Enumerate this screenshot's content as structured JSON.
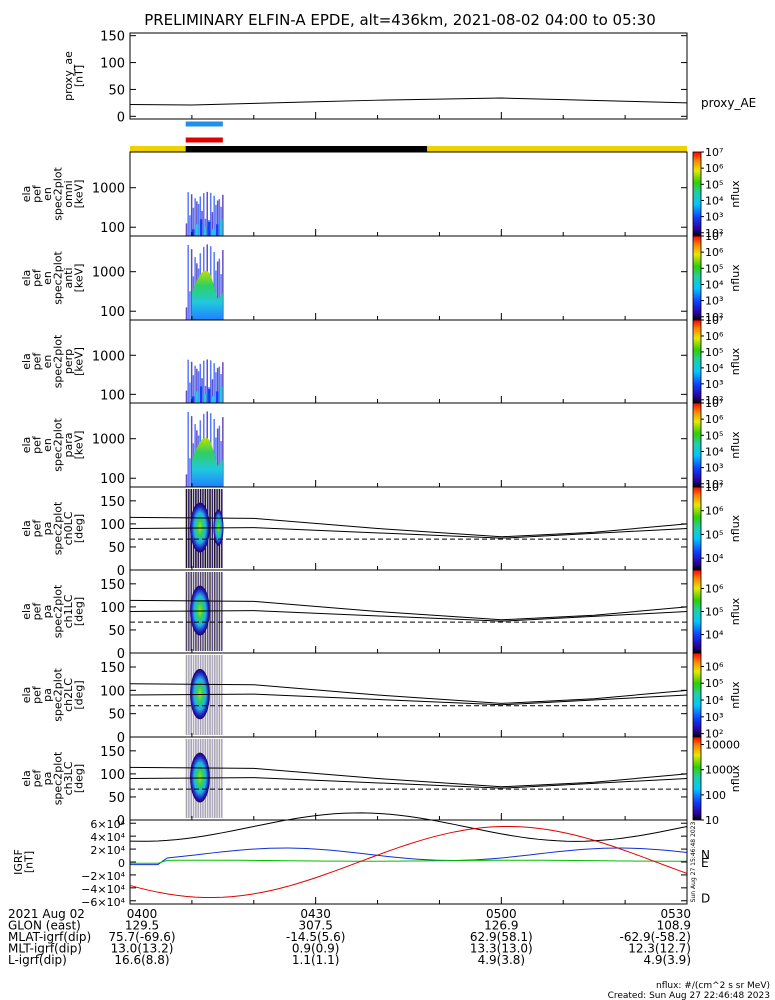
{
  "title": "PRELIMINARY ELFIN-A EPDE, alt=436km, 2021-08-02 04:00 to 05:30",
  "chart_data": [
    {
      "type": "line",
      "name": "proxy_ae",
      "ylabel_lines": [
        "proxy_ae",
        "[nT]"
      ],
      "ylim": [
        -5,
        155
      ],
      "yticks": [
        "0",
        "50",
        "100",
        "150"
      ],
      "ytick_values": [
        0,
        50,
        100,
        150
      ],
      "xlim_min": [
        0,
        90
      ],
      "series": [
        {
          "name": "proxy_AE",
          "x_min": [
            0,
            10,
            20,
            30,
            40,
            50,
            60,
            70,
            80,
            90
          ],
          "y": [
            22,
            21,
            24,
            27,
            30,
            32,
            34,
            31,
            28,
            25
          ]
        }
      ],
      "bars": [
        {
          "label_color": "#1f8fe8",
          "from_min": 9,
          "to_min": 15
        },
        {
          "label_color": "#e00000",
          "from_min": 9,
          "to_min": 15
        }
      ]
    },
    {
      "type": "heatmap",
      "ylabel_lines": [
        "ela",
        "pef",
        "en",
        "spec2plot",
        "omni",
        "[keV]"
      ],
      "ylog": true,
      "yticks": [
        "100",
        "1000"
      ],
      "ytick_values": [
        100,
        1000
      ],
      "ylim": [
        60,
        8000
      ],
      "colorbar": {
        "label": "nflux",
        "tick_values": [
          2,
          3,
          4,
          5,
          6,
          7
        ],
        "tick_labels": [
          "10²",
          "10³",
          "10⁴",
          "10⁵",
          "10⁶",
          "10⁷"
        ],
        "range_log10": [
          1.8,
          7
        ]
      }
    },
    {
      "type": "heatmap",
      "ylabel_lines": [
        "ela",
        "pef",
        "en",
        "spec2plot",
        "anti",
        "[keV]"
      ],
      "ylog": true,
      "yticks": [
        "100",
        "1000"
      ],
      "ytick_values": [
        100,
        1000
      ],
      "ylim": [
        60,
        8000
      ],
      "colorbar": {
        "label": "nflux",
        "tick_values": [
          2,
          3,
          4,
          5,
          6,
          7
        ],
        "tick_labels": [
          "10²",
          "10³",
          "10⁴",
          "10⁵",
          "10⁶",
          "10⁷"
        ],
        "range_log10": [
          1.8,
          7
        ]
      }
    },
    {
      "type": "heatmap",
      "ylabel_lines": [
        "ela",
        "pef",
        "en",
        "spec2plot",
        "perp",
        "[keV]"
      ],
      "ylog": true,
      "yticks": [
        "100",
        "1000"
      ],
      "ytick_values": [
        100,
        1000
      ],
      "ylim": [
        60,
        8000
      ],
      "colorbar": {
        "label": "nflux",
        "tick_values": [
          2,
          3,
          4,
          5,
          6,
          7
        ],
        "tick_labels": [
          "10²",
          "10³",
          "10⁴",
          "10⁵",
          "10⁶",
          "10⁷"
        ],
        "range_log10": [
          1.8,
          7
        ]
      }
    },
    {
      "type": "heatmap",
      "ylabel_lines": [
        "ela",
        "pef",
        "en",
        "spec2plot",
        "para",
        "[keV]"
      ],
      "ylog": true,
      "yticks": [
        "100",
        "1000"
      ],
      "ytick_values": [
        100,
        1000
      ],
      "ylim": [
        60,
        8000
      ],
      "colorbar": {
        "label": "nflux",
        "tick_values": [
          2,
          3,
          4,
          5,
          6,
          7
        ],
        "tick_labels": [
          "10²",
          "10³",
          "10⁴",
          "10⁵",
          "10⁶",
          "10⁷"
        ],
        "range_log10": [
          1.8,
          7
        ]
      }
    },
    {
      "type": "heatmap",
      "ylabel_lines": [
        "ela",
        "pef",
        "pa",
        "spec2plot",
        "ch0LC",
        "[deg]"
      ],
      "yticks": [
        "0",
        "50",
        "100",
        "150"
      ],
      "ytick_values": [
        0,
        50,
        100,
        150
      ],
      "ylim": [
        0,
        180
      ],
      "colorbar": {
        "label": "nflux",
        "tick_values": [
          4,
          5,
          6,
          7
        ],
        "tick_labels": [
          "10⁴",
          "10⁵",
          "10⁶",
          "10⁷"
        ],
        "range_log10": [
          3.5,
          7
        ]
      }
    },
    {
      "type": "heatmap",
      "ylabel_lines": [
        "ela",
        "pef",
        "pa",
        "spec2plot",
        "ch1LC",
        "[deg]"
      ],
      "yticks": [
        "0",
        "50",
        "100",
        "150"
      ],
      "ytick_values": [
        0,
        50,
        100,
        150
      ],
      "ylim": [
        0,
        180
      ],
      "colorbar": {
        "label": "nflux",
        "tick_values": [
          4,
          5,
          6
        ],
        "tick_labels": [
          "10⁴",
          "10⁵",
          "10⁶"
        ],
        "range_log10": [
          3.2,
          6.8
        ]
      }
    },
    {
      "type": "heatmap",
      "ylabel_lines": [
        "ela",
        "pef",
        "pa",
        "spec2plot",
        "ch2LC",
        "[deg]"
      ],
      "yticks": [
        "0",
        "50",
        "100",
        "150"
      ],
      "ytick_values": [
        0,
        50,
        100,
        150
      ],
      "ylim": [
        0,
        180
      ],
      "colorbar": {
        "label": "nflux",
        "tick_values": [
          2,
          3,
          4,
          5,
          6
        ],
        "tick_labels": [
          "10²",
          "10³",
          "10⁴",
          "10⁵",
          "10⁶"
        ],
        "range_log10": [
          1.8,
          6.8
        ]
      }
    },
    {
      "type": "heatmap",
      "ylabel_lines": [
        "ela",
        "pef",
        "pa",
        "spec2plot",
        "ch3LC",
        "[deg]"
      ],
      "yticks": [
        "0",
        "50",
        "100",
        "150"
      ],
      "ytick_values": [
        0,
        50,
        100,
        150
      ],
      "ylim": [
        0,
        180
      ],
      "colorbar": {
        "label": "nflux",
        "tick_values": [
          1,
          2,
          3,
          4
        ],
        "tick_labels": [
          "10",
          "100",
          "1000",
          "10000"
        ],
        "range_log10": [
          1,
          4.3
        ]
      }
    },
    {
      "type": "line",
      "ylabel_lines": [
        "IGRF",
        "[nT]"
      ],
      "yticks": [
        "6×10⁴",
        "4×10⁴",
        "2×10⁴",
        "0",
        "−2×10⁴",
        "−4×10⁴",
        "−6×10⁴"
      ],
      "ytick_values": [
        60000,
        40000,
        20000,
        0,
        -20000,
        -40000,
        -60000
      ],
      "ylim": [
        -65000,
        65000
      ],
      "series": [
        {
          "name": "N",
          "color": "#1030d0"
        },
        {
          "name": "E",
          "color": "#00c000"
        },
        {
          "name": "D",
          "color": "#e00000"
        }
      ]
    }
  ],
  "xaxis": {
    "ticks_min": [
      0,
      30,
      60,
      90
    ],
    "rows": [
      {
        "label": "2021 Aug 02",
        "values": [
          "0400",
          "0430",
          "0500",
          "0530"
        ]
      },
      {
        "label": "GLON (east)",
        "values": [
          "129.5",
          "307.5",
          "126.9",
          "108.9"
        ]
      },
      {
        "label": "MLAT-igrf(dip)",
        "values": [
          "75.7(-69.6)",
          "-14.5(5.6)",
          "62.9(58.1)",
          "-62.9(-58.2)"
        ]
      },
      {
        "label": "MLT-igrf(dip)",
        "values": [
          "13.0(13.2)",
          "0.9(0.9)",
          "13.3(13.0)",
          "12.3(12.7)"
        ]
      },
      {
        "label": "L-igrf(dip)",
        "values": [
          "16.6(8.8)",
          "1.1(1.1)",
          "4.9(3.8)",
          "4.9(3.9)"
        ]
      }
    ]
  },
  "footer": {
    "units": "nflux: #/(cm^2 s sr MeV)",
    "created": "Created: Sun Aug 27 22:46:48 2023",
    "side_stamp": "Sun Aug 27 15:46:48 2023"
  }
}
